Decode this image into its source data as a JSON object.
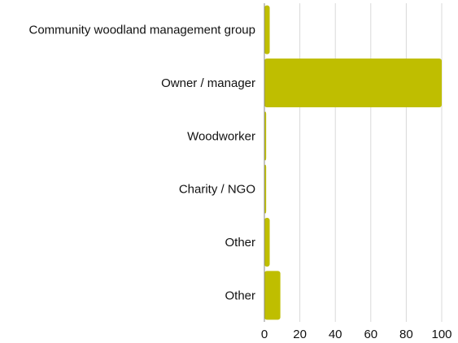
{
  "chart_data": {
    "type": "bar",
    "orientation": "horizontal",
    "categories": [
      "Community woodland management group",
      "Owner / manager",
      "Woodworker",
      "Charity / NGO",
      "Other",
      "Other"
    ],
    "values": [
      3,
      100,
      1,
      1,
      3,
      9
    ],
    "xlim": [
      0,
      100
    ],
    "xticks": [
      0,
      20,
      40,
      60,
      80,
      100
    ],
    "title": "",
    "xlabel": "",
    "ylabel": "",
    "grid": "vertical",
    "legend": "none",
    "bar_color": "#bfbe00",
    "grid_color": "#d9d9d9",
    "axis_color": "#888888"
  }
}
